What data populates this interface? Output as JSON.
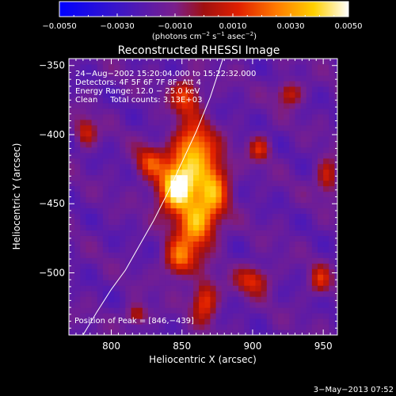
{
  "chart_data": {
    "type": "heatmap",
    "title": "Reconstructed RHESSI Image",
    "xlabel": "Heliocentric X (arcsec)",
    "ylabel": "Heliocentric Y (arcsec)",
    "xlim": [
      770,
      960
    ],
    "ylim": [
      -545,
      -345
    ],
    "xticks": [
      800,
      850,
      900,
      950
    ],
    "yticks": [
      -350,
      -400,
      -450,
      -500
    ],
    "colorbar": {
      "range": [
        -0.005,
        0.005
      ],
      "ticks": [
        -0.005,
        -0.003,
        -0.001,
        0.001,
        0.003,
        0.005
      ],
      "tick_labels": [
        "−0.0050",
        "−0.0030",
        "−0.0010",
        "0.0010",
        "0.0030",
        "0.0050"
      ],
      "units_label": [
        "(photons cm",
        "−2",
        " s",
        "−1",
        " asec",
        "−2",
        ")"
      ]
    },
    "annotations": [
      "24−Aug−2002 15:20:04.000 to 15:22:32.000",
      "Detectors: 4F 5F 6F 7F 8F, Att 4",
      "Energy Range: 12.0 − 25.0 keV",
      "Clean     Total counts: 3.13E+03"
    ],
    "peak_label": "Position of Peak = [846,−439]",
    "peak": [
      846,
      -439
    ],
    "limb_curve": [
      [
        780,
        -545
      ],
      [
        790,
        -528
      ],
      [
        800,
        -512
      ],
      [
        810,
        -498
      ],
      [
        820,
        -480
      ],
      [
        830,
        -462
      ],
      [
        840,
        -442
      ],
      [
        850,
        -420
      ],
      [
        860,
        -398
      ],
      [
        870,
        -373
      ],
      [
        879,
        -345
      ]
    ],
    "hot_sources": [
      {
        "x": 846,
        "y": -439,
        "value": 0.005,
        "sx": 9,
        "sy": 12
      },
      {
        "x": 858,
        "y": -412,
        "value": 0.0036,
        "sx": 10,
        "sy": 14
      },
      {
        "x": 860,
        "y": -465,
        "value": 0.0034,
        "sx": 9,
        "sy": 13
      },
      {
        "x": 872,
        "y": -438,
        "value": 0.0028,
        "sx": 8,
        "sy": 14
      },
      {
        "x": 848,
        "y": -490,
        "value": 0.0022,
        "sx": 7,
        "sy": 9
      },
      {
        "x": 866,
        "y": -520,
        "value": 0.0018,
        "sx": 6,
        "sy": 10
      },
      {
        "x": 853,
        "y": -372,
        "value": 0.0016,
        "sx": 7,
        "sy": 9
      },
      {
        "x": 827,
        "y": -420,
        "value": 0.0014,
        "sx": 7,
        "sy": 8
      },
      {
        "x": 900,
        "y": -505,
        "value": 0.0012,
        "sx": 8,
        "sy": 7
      },
      {
        "x": 905,
        "y": -410,
        "value": 0.001,
        "sx": 5,
        "sy": 6
      },
      {
        "x": 782,
        "y": -398,
        "value": 0.0009,
        "sx": 5,
        "sy": 7
      },
      {
        "x": 953,
        "y": -430,
        "value": 0.0009,
        "sx": 5,
        "sy": 9
      },
      {
        "x": 948,
        "y": -505,
        "value": 0.001,
        "sx": 5,
        "sy": 7
      },
      {
        "x": 926,
        "y": -370,
        "value": 0.0009,
        "sx": 6,
        "sy": 6
      },
      {
        "x": 818,
        "y": -530,
        "value": 0.0009,
        "sx": 5,
        "sy": 5
      }
    ],
    "grid": false,
    "colormap": "blue-purple-red-yellow-white"
  },
  "footer": {
    "date": "3−May−2013 07:52"
  }
}
